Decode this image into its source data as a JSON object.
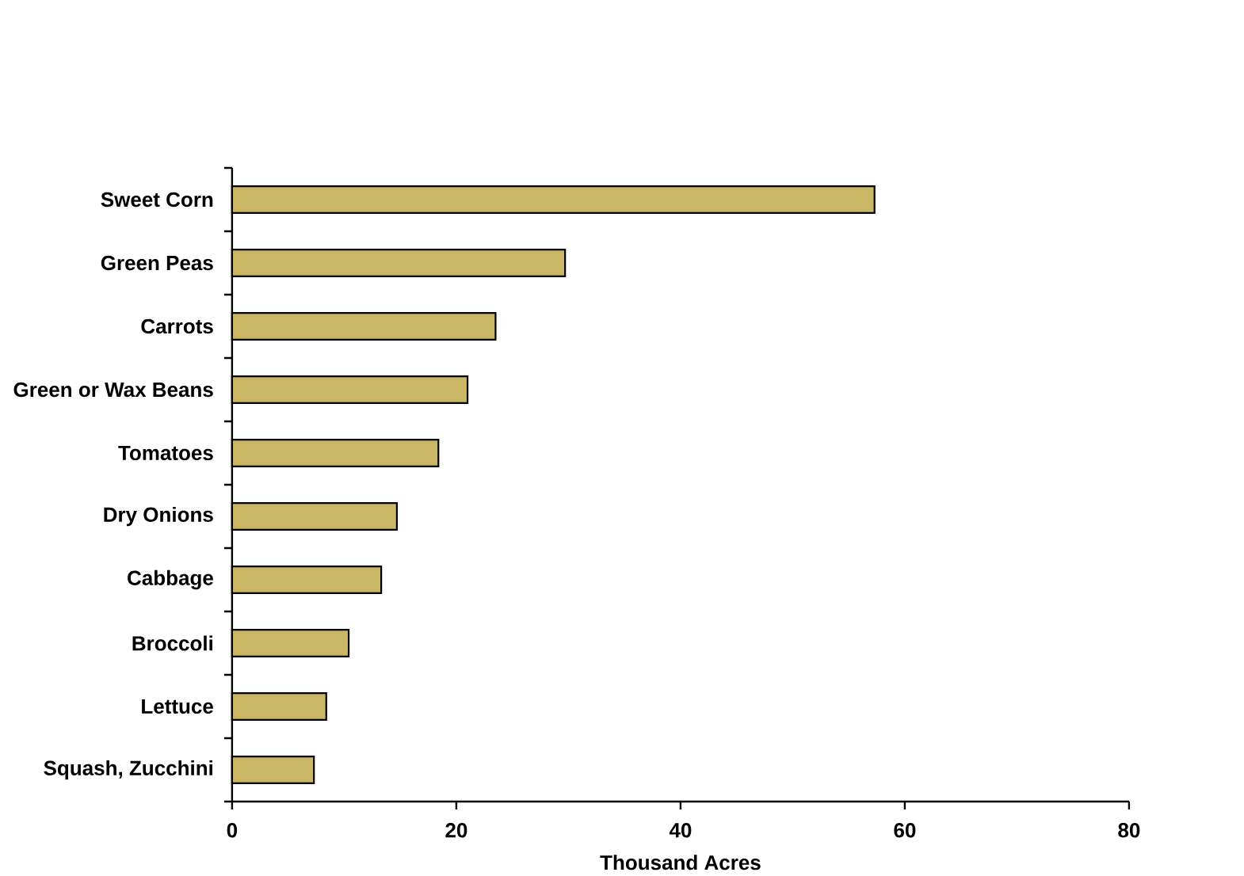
{
  "chart_data": {
    "type": "bar",
    "orientation": "horizontal",
    "categories": [
      "Sweet Corn",
      "Green Peas",
      "Carrots",
      "Green or Wax Beans",
      "Tomatoes",
      "Dry Onions",
      "Cabbage",
      "Broccoli",
      "Lettuce",
      "Squash, Zucchini"
    ],
    "values": [
      57.3,
      29.7,
      23.5,
      21.0,
      18.4,
      14.7,
      13.3,
      10.4,
      8.4,
      7.3
    ],
    "color": "#cbb866",
    "xlim": [
      0,
      80
    ],
    "xticks": [
      0,
      20,
      40,
      60,
      80
    ],
    "xlabel": "Thousand Acres"
  }
}
